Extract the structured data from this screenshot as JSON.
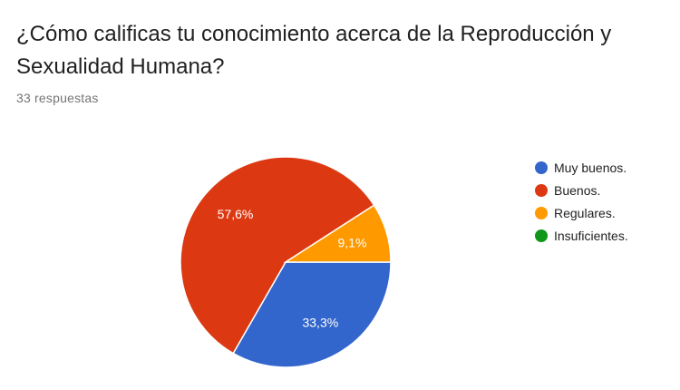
{
  "header": {
    "title": "¿Cómo calificas tu conocimiento acerca de la Reproducción y Sexualidad Humana?",
    "responses": "33 respuestas"
  },
  "chart_data": {
    "type": "pie",
    "title": "¿Cómo calificas tu conocimiento acerca de la Reproducción y Sexualidad Humana?",
    "categories": [
      "Muy buenos.",
      "Buenos.",
      "Regulares.",
      "Insuficientes."
    ],
    "values": [
      33.3,
      57.6,
      9.1,
      0
    ],
    "value_labels": [
      "33,3%",
      "57,6%",
      "9,1%",
      ""
    ],
    "colors": [
      "#3366cc",
      "#dc3912",
      "#ff9900",
      "#109618"
    ],
    "legend_position": "right"
  }
}
